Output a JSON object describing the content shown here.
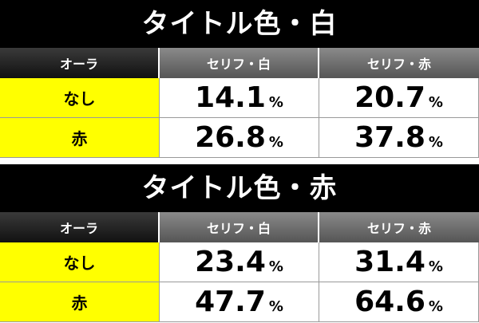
{
  "tables": [
    {
      "title": "タイトル色・白",
      "header": [
        "オーラ",
        "セリフ・白",
        "セリフ・赤"
      ],
      "rows": [
        [
          {
            "label": "なし"
          },
          {
            "value": "14.1",
            "unit": "%"
          },
          {
            "value": "20.7",
            "unit": "%"
          }
        ],
        [
          {
            "label": "赤"
          },
          {
            "value": "26.8",
            "unit": "%"
          },
          {
            "value": "37.8",
            "unit": "%"
          }
        ]
      ]
    },
    {
      "title": "タイトル色・赤",
      "header": [
        "オーラ",
        "セリフ・白",
        "セリフ・赤"
      ],
      "rows": [
        [
          {
            "label": "なし"
          },
          {
            "value": "23.4",
            "unit": "%"
          },
          {
            "value": "31.4",
            "unit": "%"
          }
        ],
        [
          {
            "label": "赤"
          },
          {
            "value": "47.7",
            "unit": "%"
          },
          {
            "value": "64.6",
            "unit": "%"
          }
        ]
      ]
    }
  ]
}
